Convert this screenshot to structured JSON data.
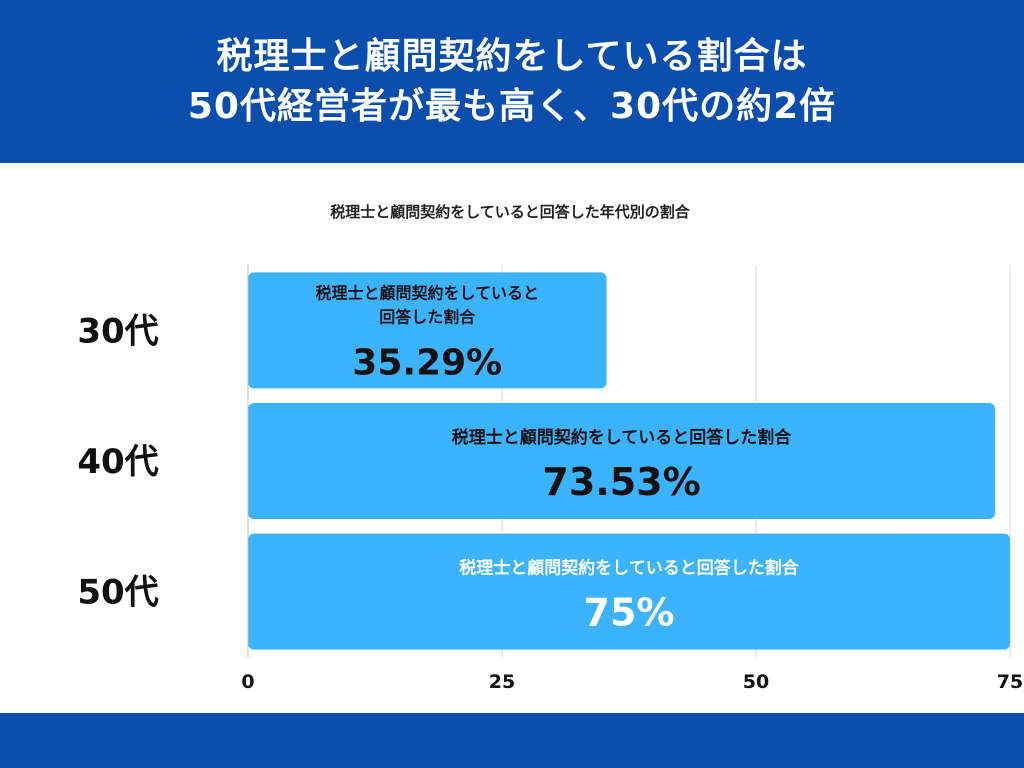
{
  "header": {
    "line1": "税理士と顧問契約をしている割合は",
    "line2": "50代経営者が最も高く、30代の約2倍"
  },
  "colors": {
    "header_bg": "#0a4ead",
    "bar": "#3bb3ff",
    "grid": "#d9d9d9",
    "axis_text": "#111111",
    "bar_text_dark": "#111111",
    "bar_text_light": "#ffffff"
  },
  "chart_data": {
    "type": "bar",
    "orientation": "horizontal",
    "title": "税理士と顧問契約をしていると回答した年代別の割合",
    "categories": [
      "30代",
      "40代",
      "50代"
    ],
    "series": [
      {
        "name": "税理士と顧問契約をしていると回答した割合",
        "values": [
          35.29,
          73.53,
          75
        ],
        "value_labels": [
          "35.29%",
          "73.53%",
          "75%"
        ]
      }
    ],
    "bar_captions": [
      [
        "税理士と顧問契約をしていると",
        "回答した割合"
      ],
      [
        "税理士と顧問契約をしていると回答した割合"
      ],
      [
        "税理士と顧問契約をしていると回答した割合"
      ]
    ],
    "xlim": [
      0,
      75
    ],
    "xticks": [
      0,
      25,
      50,
      75
    ],
    "xtick_labels": [
      "0",
      "25",
      "50",
      "75"
    ],
    "grid": true,
    "legend": "none"
  }
}
